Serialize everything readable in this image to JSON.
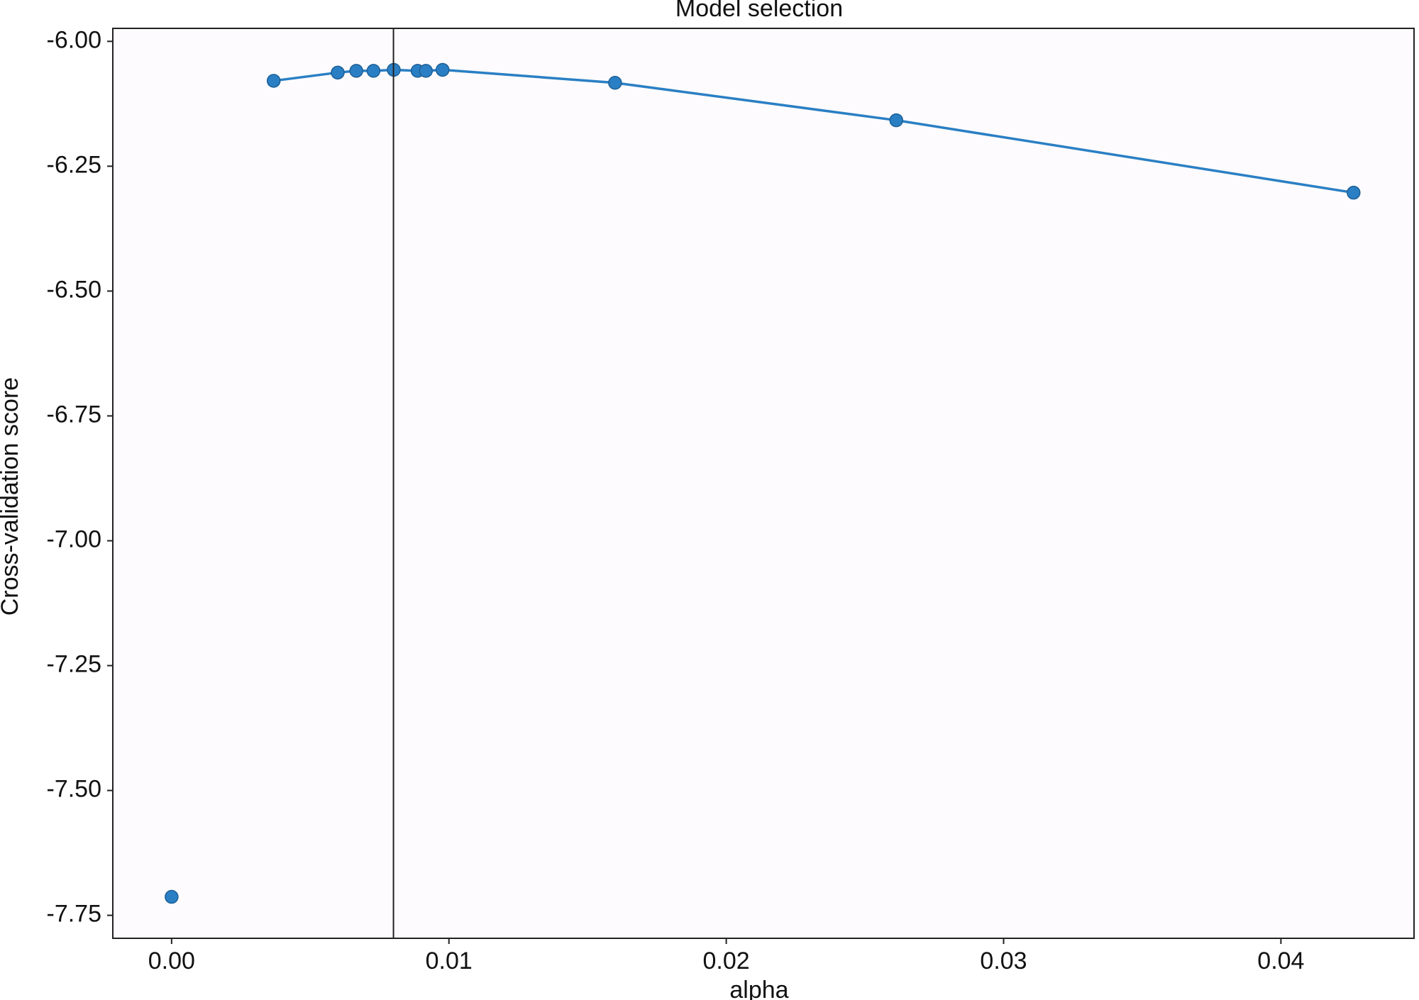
{
  "chart_data": {
    "type": "line",
    "title": "Model selection",
    "x_label": "alpha",
    "y_label": "Cross-validation score",
    "xlim": [
      -0.00212,
      0.0448
    ],
    "ylim": [
      -7.796,
      -5.974
    ],
    "xticks": [
      {
        "value": 0,
        "label": "0.00"
      },
      0.01,
      0.02,
      0.03,
      0.04
    ],
    "yticks": [
      {
        "value": -6,
        "label": "-6.00"
      },
      {
        "value": -6.25,
        "label": "-6.25"
      },
      {
        "value": -6.5,
        "label": "-6.50"
      },
      {
        "value": -6.75,
        "label": "-6.75"
      },
      {
        "value": -7,
        "label": "-7.00"
      },
      {
        "value": -7.25,
        "label": "-7.25"
      },
      {
        "value": -7.5,
        "label": "-7.50"
      },
      {
        "value": -7.75,
        "label": "-7.75"
      }
    ],
    "vline": 0.008,
    "vline_color": "#222222",
    "series": [
      {
        "color": "#2a7fc4",
        "line": false,
        "x": [
          0
        ],
        "values": [
          -7.713
        ]
      },
      {
        "color": "#2a7fc4",
        "line": true,
        "x": [
          0.00368,
          0.00599,
          0.00666,
          0.00728,
          0.00801,
          0.00887,
          0.00917,
          0.00977,
          0.01599,
          0.02613,
          0.04262
        ],
        "values": [
          -6.079,
          -6.0625,
          -6.059,
          -6.059,
          -6.057,
          -6.059,
          -6.059,
          -6.057,
          -6.083,
          -6.158,
          -6.303
        ]
      }
    ]
  }
}
